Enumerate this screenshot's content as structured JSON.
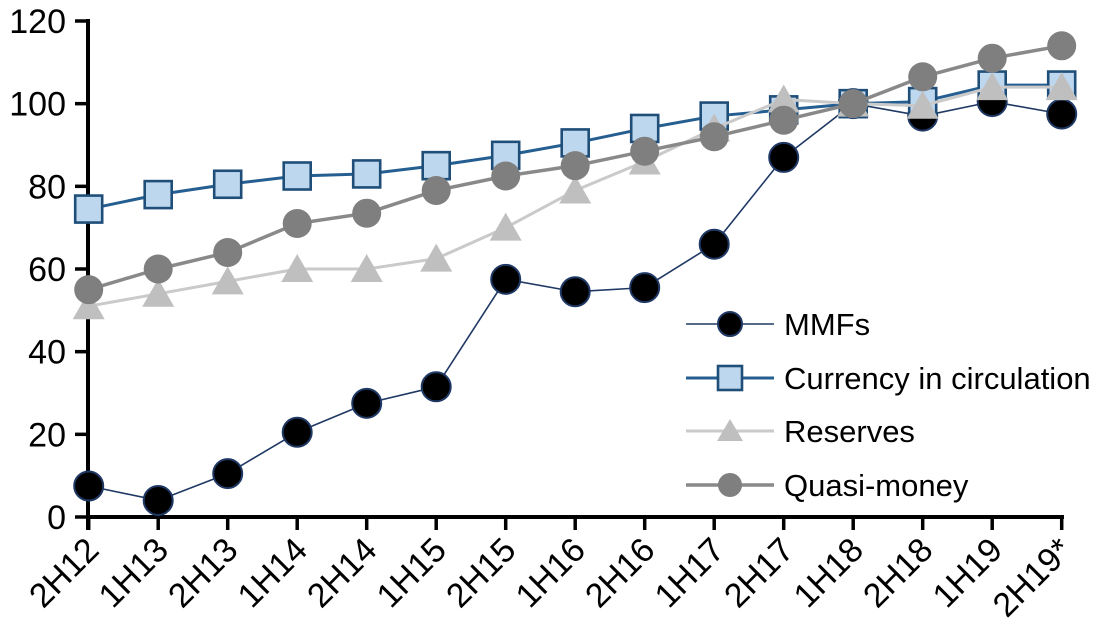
{
  "chart_data": {
    "type": "line",
    "title": "",
    "categories": [
      "2H12",
      "1H13",
      "2H13",
      "1H14",
      "2H14",
      "1H15",
      "2H15",
      "1H16",
      "2H16",
      "1H17",
      "2H17",
      "1H18",
      "2H18",
      "1H19",
      "2H19*"
    ],
    "series": [
      {
        "name": "MMFs",
        "marker": "circle",
        "marker_fill": "#000000",
        "marker_stroke": "#1F3864",
        "line_color": "#1F3864",
        "line_width": 1.6,
        "values": [
          7.5,
          4,
          10.5,
          20.5,
          27.5,
          31.5,
          57.5,
          54.5,
          55.5,
          66,
          87,
          100,
          97,
          100.5,
          97.5
        ]
      },
      {
        "name": "Currency in circulation",
        "marker": "square",
        "marker_fill": "#BDD7EE",
        "marker_stroke": "#1F4E79",
        "line_color": "#255E91",
        "line_width": 3,
        "values": [
          74.5,
          78,
          80.5,
          82.5,
          83,
          85,
          87.5,
          90.5,
          94,
          97,
          98.5,
          100,
          100.5,
          104.5,
          104.5
        ]
      },
      {
        "name": "Reserves",
        "marker": "triangle",
        "marker_fill": "#BFBFBF",
        "marker_stroke": "none",
        "line_color": "#CACACA",
        "line_width": 3,
        "values": [
          51,
          54,
          57,
          60,
          60,
          62.5,
          70,
          79,
          86,
          94,
          101,
          100,
          99.5,
          104,
          104
        ]
      },
      {
        "name": "Quasi-money",
        "marker": "circle",
        "marker_fill": "#7F7F7F",
        "marker_stroke": "none",
        "line_color": "#898989",
        "line_width": 3.5,
        "values": [
          55,
          60,
          64,
          71,
          73.5,
          79,
          82.5,
          85,
          88.5,
          92,
          96,
          100,
          106.5,
          111,
          114
        ]
      }
    ],
    "y_axis": {
      "min": 0,
      "max": 120,
      "step": 20,
      "tick_labels": [
        "0",
        "20",
        "40",
        "60",
        "80",
        "100",
        "120"
      ]
    },
    "x_axis": {
      "label_rotation_deg": -45
    },
    "axis_color": "#000000",
    "grid": false,
    "legend": {
      "position": "inside-right",
      "entries": [
        "MMFs",
        "Currency in circulation",
        "Reserves",
        "Quasi-money"
      ]
    }
  }
}
